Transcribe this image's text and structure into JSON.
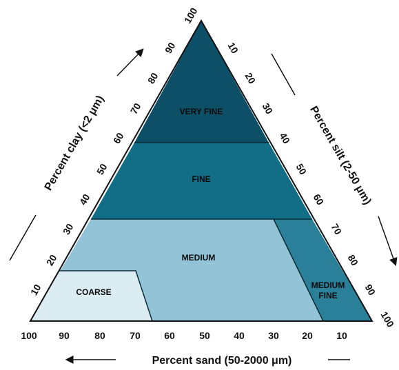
{
  "diagram": {
    "axes": {
      "clay": {
        "title": "Percent clay (<2 μm)",
        "ticks": [
          "10",
          "20",
          "30",
          "40",
          "50",
          "60",
          "70",
          "80",
          "90",
          "100"
        ]
      },
      "silt": {
        "title": "Percent silt (2-50 μm)",
        "ticks": [
          "10",
          "20",
          "30",
          "40",
          "50",
          "60",
          "70",
          "80",
          "90",
          "100"
        ]
      },
      "sand": {
        "title": "Percent sand (50-2000 μm)",
        "ticks": [
          "100",
          "90",
          "80",
          "70",
          "60",
          "50",
          "40",
          "30",
          "20",
          "10"
        ]
      }
    },
    "regions": {
      "very_fine": {
        "label": "VERY FINE",
        "color": "#0d4f66"
      },
      "fine": {
        "label": "FINE",
        "color": "#126e86"
      },
      "medium": {
        "label": "MEDIUM",
        "color": "#93c3d6"
      },
      "medium_fine": {
        "label_line1": "MEDIUM",
        "label_line2": "FINE",
        "color": "#2a7f99"
      },
      "coarse": {
        "label": "COARSE",
        "color": "#dcecf3"
      }
    },
    "colors": {
      "outline": "#111111",
      "boundary": "#0a2a36"
    }
  }
}
